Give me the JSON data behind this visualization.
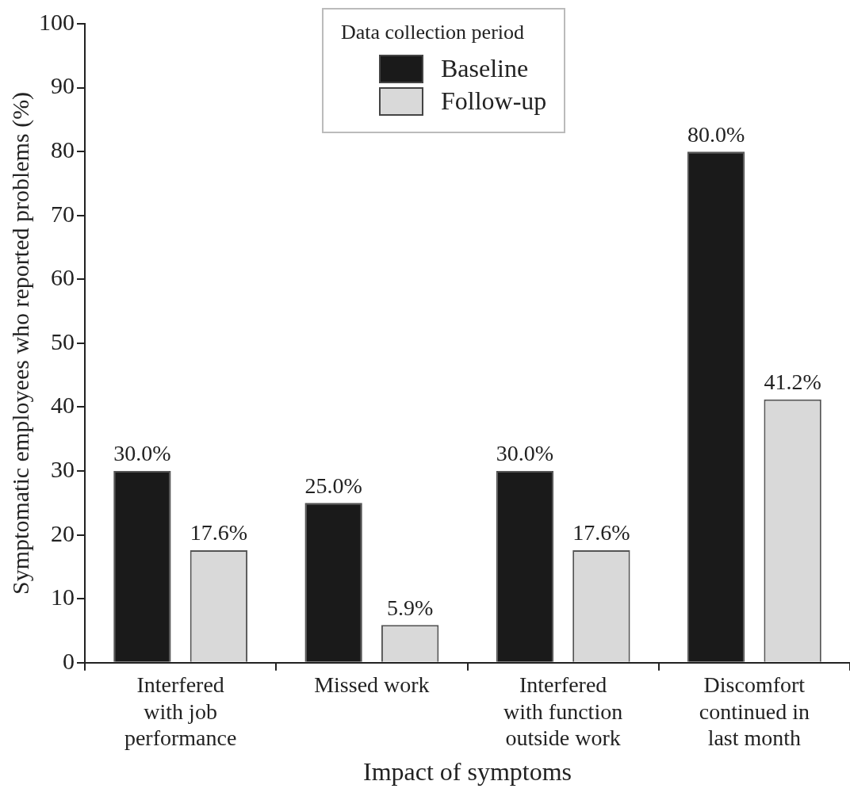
{
  "chart_data": {
    "type": "bar",
    "xlabel": "Impact of symptoms",
    "ylabel": "Symptomatic employees who reported problems (%)",
    "legend_title": "Data collection period",
    "categories": [
      "Interfered with job performance",
      "Missed work",
      "Interfered with function outside work",
      "Discomfort continued in last month"
    ],
    "series": [
      {
        "name": "Baseline",
        "color": "#1a1a1a",
        "values": [
          30.0,
          25.0,
          30.0,
          80.0
        ],
        "value_labels": [
          "30.0%",
          "25.0%",
          "30.0%",
          "80.0%"
        ]
      },
      {
        "name": "Follow-up",
        "color": "#d9d9d9",
        "values": [
          17.6,
          5.9,
          17.6,
          41.2
        ],
        "value_labels": [
          "17.6%",
          "5.9%",
          "17.6%",
          "41.2%"
        ]
      }
    ],
    "ylim": [
      0,
      100
    ],
    "yticks": [
      0,
      10,
      20,
      30,
      40,
      50,
      60,
      70,
      80,
      90,
      100
    ],
    "grid": false,
    "legend": "top"
  }
}
